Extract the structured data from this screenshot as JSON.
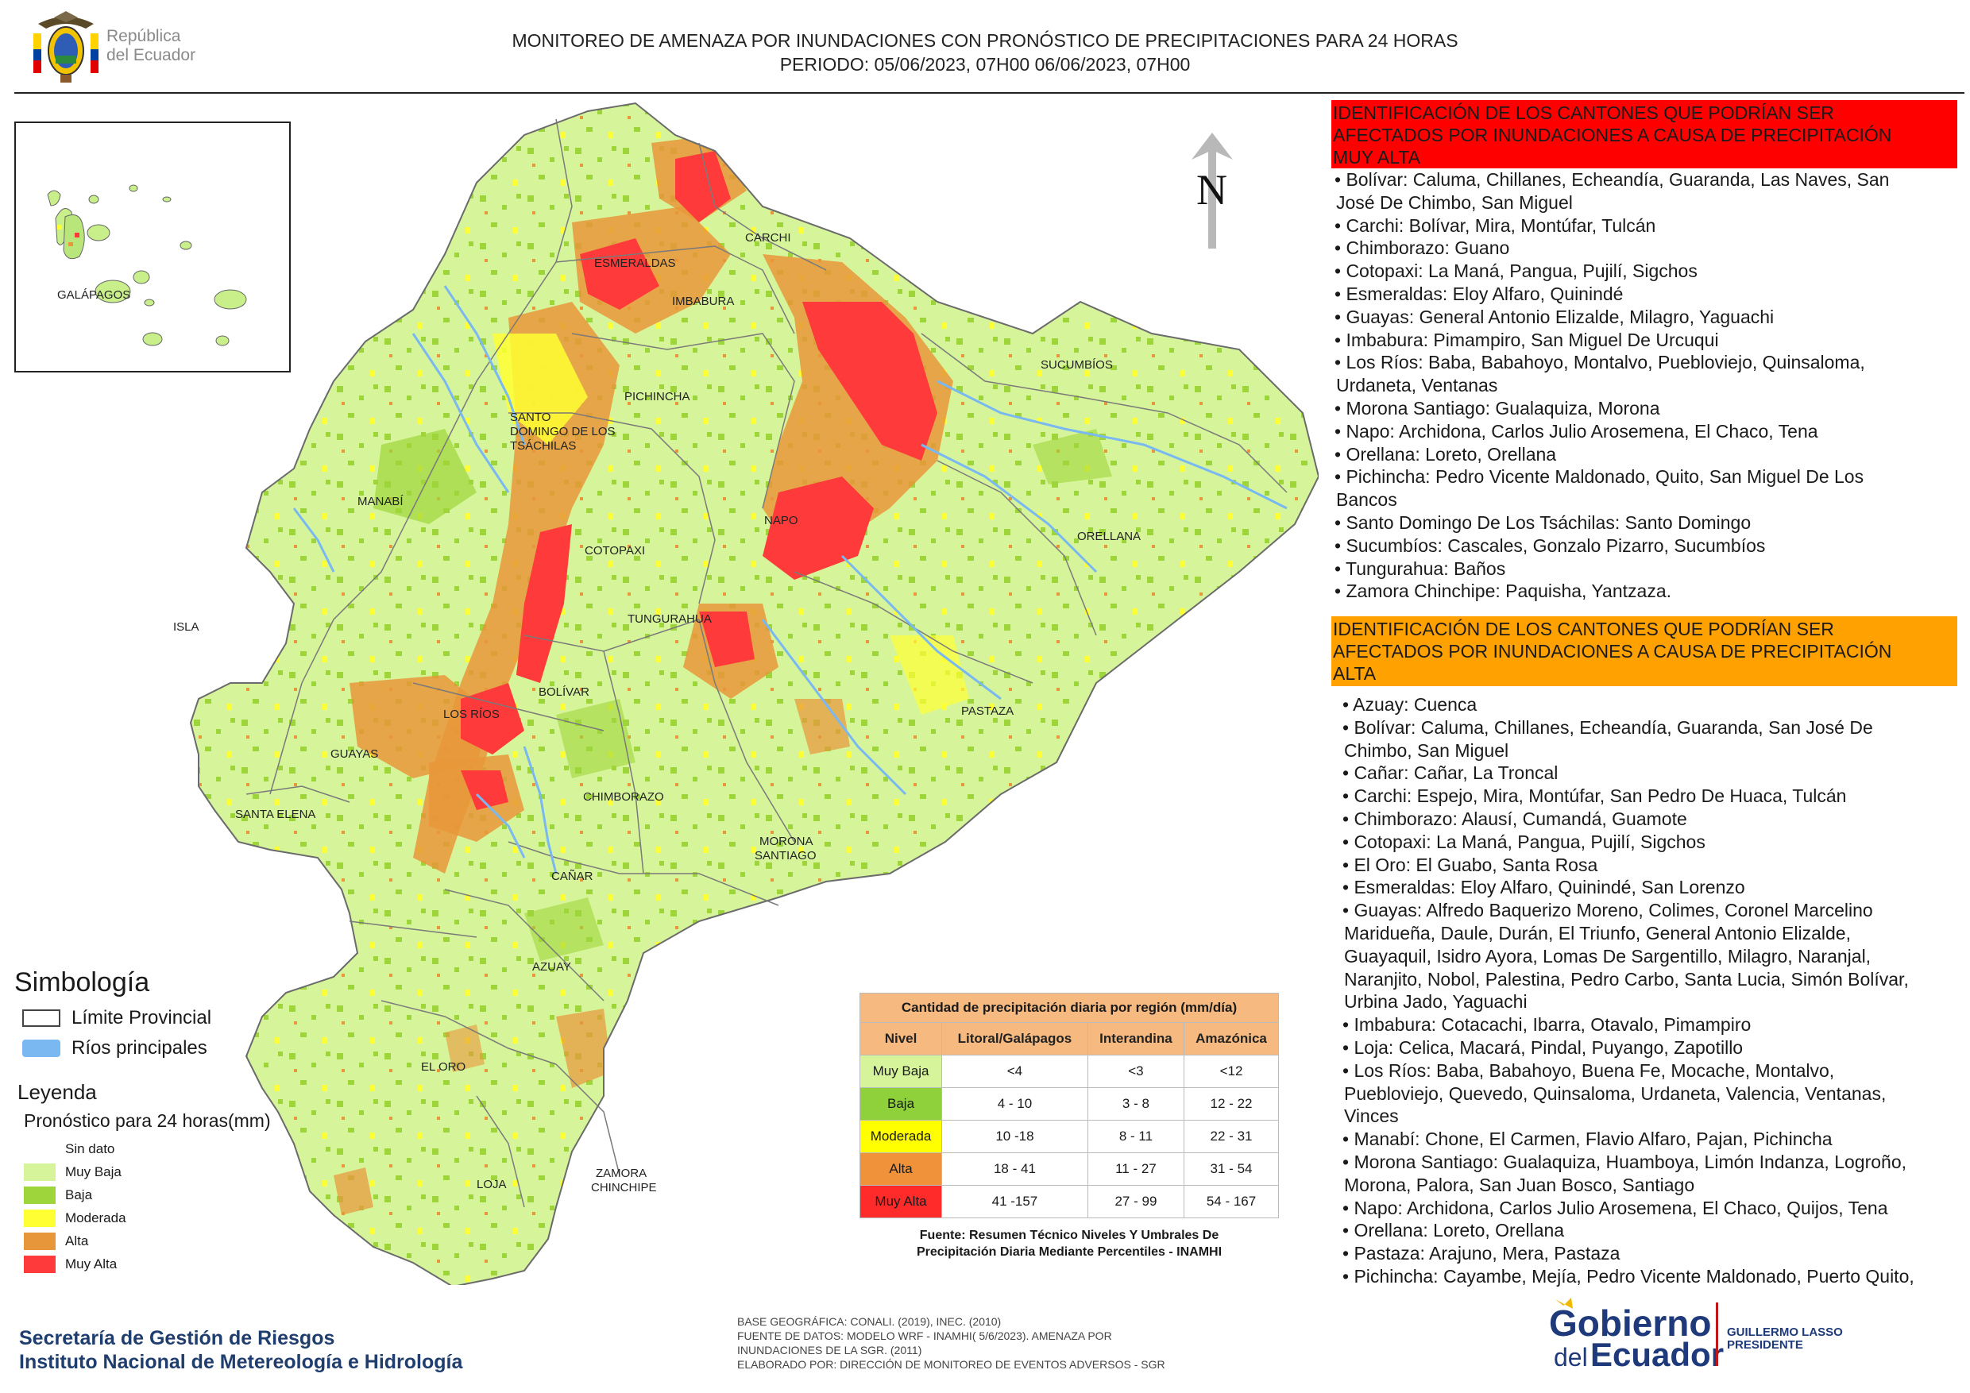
{
  "header": {
    "logo_text_line1": "República",
    "logo_text_line2": "del Ecuador",
    "title_line1": "MONITOREO DE AMENAZA POR INUNDACIONES  CON PRONÓSTICO DE  PRECIPITACIONES PARA 24 HORAS",
    "title_line2": "PERIODO: 05/06/2023, 07H00 06/06/2023, 07H00"
  },
  "map": {
    "north_label": "N",
    "inset_label": "GALÁPAGOS",
    "provinces": [
      "CARCHI",
      "ESMERALDAS",
      "IMBABURA",
      "SUCUMBÍOS",
      "PICHINCHA",
      "SANTO",
      "DOMINGO DE LOS",
      "TSÁCHILAS",
      "MANABÍ",
      "NAPO",
      "ORELLANA",
      "COTOPAXI",
      "ISLA",
      "TUNGURAHUA",
      "BOLÍVAR",
      "LOS RÍOS",
      "PASTAZA",
      "GUAYAS",
      "SANTA ELENA",
      "CHIMBORAZO",
      "MORONA",
      "SANTIAGO",
      "CAÑAR",
      "AZUAY",
      "EL ORO",
      "ZAMORA",
      "CHINCHIPE",
      "LOJA"
    ],
    "colors": {
      "muy_baja": "#d6f59a",
      "baja": "#9ed53a",
      "moderada": "#ffff33",
      "alta": "#e8963a",
      "muy_alta": "#ff3a3a",
      "rivers": "#7ab8f2",
      "border": "#6b6b6b"
    }
  },
  "legend": {
    "simbologia_title": "Simbología",
    "limite": "Límite Provincial",
    "rios": "Ríos principales",
    "leyenda_title": "Leyenda",
    "leyenda_sub": "Pronóstico para 24 horas(mm)",
    "items": [
      {
        "label": "Sin dato",
        "color": "#ffffff"
      },
      {
        "label": "Muy Baja",
        "color": "#d6f59a"
      },
      {
        "label": "Baja",
        "color": "#9ed53a"
      },
      {
        "label": "Moderada",
        "color": "#ffff33"
      },
      {
        "label": "Alta",
        "color": "#e8963a"
      },
      {
        "label": "Muy Alta",
        "color": "#ff3a3a"
      }
    ]
  },
  "precip_table": {
    "title": "Cantidad de precipitación diaria por región (mm/día)",
    "headers": [
      "Nivel",
      "Litoral/Galápagos",
      "Interandina",
      "Amazónica"
    ],
    "rows": [
      {
        "nivel": "Muy Baja",
        "color": "#d6f59a",
        "litoral": "<4",
        "interandina": "<3",
        "amazonica": "<12"
      },
      {
        "nivel": "Baja",
        "color": "#8ed13b",
        "litoral": "4 - 10",
        "interandina": "3 - 8",
        "amazonica": "12 - 22"
      },
      {
        "nivel": "Moderada",
        "color": "#ffff00",
        "litoral": "10 -18",
        "interandina": "8 - 11",
        "amazonica": "22 - 31"
      },
      {
        "nivel": "Alta",
        "color": "#f0923a",
        "litoral": "18 - 41",
        "interandina": "11 - 27",
        "amazonica": "31 - 54"
      },
      {
        "nivel": "Muy Alta",
        "color": "#ff2a2a",
        "litoral": "41 -157",
        "interandina": "27 - 99",
        "amazonica": "54 - 167"
      }
    ],
    "source_line1": "Fuente: Resumen Técnico Niveles Y Umbrales De",
    "source_line2": "Precipitación Diaria Mediante Percentiles - INAMHI"
  },
  "footer": {
    "org_line1": "Secretaría de Gestión de Riesgos",
    "org_line2": "Instituto Nacional de Metereología e Hidrología",
    "credits_line1": "BASE GEOGRÁFICA: CONALI. (2019), INEC. (2010)",
    "credits_line2": "FUENTE DE DATOS: MODELO WRF - INAMHI( 5/6/2023).  AMENAZA POR",
    "credits_line3": "INUNDACIONES DE LA SGR. (2011)",
    "credits_line4": "ELABORADO POR: DIRECCIÓN DE MONITOREO DE EVENTOS ADVERSOS - SGR",
    "gob_line1": "Gobierno",
    "gob_line2": "del",
    "gob_line3": "Ecuador",
    "president_line1": "GUILLERMO LASSO",
    "president_line2": "PRESIDENTE"
  },
  "panel_red": {
    "head_line1": "IDENTIFICACIÓN DE LOS CANTONES QUE PODRÍAN SER",
    "head_line2": "AFECTADOS POR INUNDACIONES  A CAUSA DE PRECIPITACIÓN",
    "head_line3": "MUY ALTA",
    "items": [
      "• Bolívar: Caluma, Chillanes, Echeandía, Guaranda, Las Naves, San",
      "José De Chimbo, San Miguel",
      "• Carchi: Bolívar, Mira, Montúfar, Tulcán",
      "• Chimborazo: Guano",
      "• Cotopaxi: La Maná, Pangua, Pujilí, Sigchos",
      "• Esmeraldas: Eloy Alfaro, Quinindé",
      "• Guayas: General Antonio Elizalde, Milagro, Yaguachi",
      "• Imbabura: Pimampiro, San Miguel De Urcuqui",
      "• Los Ríos: Baba, Babahoyo, Montalvo, Puebloviejo, Quinsaloma,",
      "Urdaneta, Ventanas",
      "• Morona Santiago: Gualaquiza, Morona",
      "• Napo: Archidona, Carlos Julio Arosemena, El Chaco, Tena",
      "• Orellana: Loreto, Orellana",
      "• Pichincha: Pedro Vicente Maldonado, Quito, San Miguel De Los",
      "Bancos",
      "• Santo Domingo De Los Tsáchilas: Santo Domingo",
      "• Sucumbíos: Cascales, Gonzalo Pizarro, Sucumbíos",
      "• Tungurahua: Baños",
      "• Zamora Chinchipe: Paquisha, Yantzaza."
    ]
  },
  "panel_orange": {
    "head_line1": "IDENTIFICACIÓN DE LOS CANTONES QUE  PODRÍAN SER",
    "head_line2": "AFECTADOS POR INUNDACIONES  A CAUSA DE PRECIPITACIÓN",
    "head_line3": "ALTA",
    "items": [
      "• Azuay: Cuenca",
      "• Bolívar: Caluma, Chillanes, Echeandía, Guaranda, San José De",
      "Chimbo, San Miguel",
      "• Cañar: Cañar, La Troncal",
      "• Carchi: Espejo, Mira, Montúfar, San Pedro De Huaca, Tulcán",
      "• Chimborazo: Alausí, Cumandá, Guamote",
      "• Cotopaxi: La Maná, Pangua, Pujilí, Sigchos",
      "• El Oro: El Guabo, Santa Rosa",
      "• Esmeraldas: Eloy Alfaro, Quinindé, San Lorenzo",
      "• Guayas: Alfredo Baquerizo Moreno, Colimes, Coronel Marcelino",
      "Maridueña, Daule, Durán, El Triunfo, General Antonio Elizalde,",
      "Guayaquil, Isidro Ayora, Lomas De Sargentillo, Milagro, Naranjal,",
      "Naranjito, Nobol, Palestina, Pedro Carbo, Santa Lucia, Simón Bolívar,",
      "Urbina Jado, Yaguachi",
      "• Imbabura: Cotacachi, Ibarra, Otavalo, Pimampiro",
      "• Loja: Celica, Macará, Pindal, Puyango, Zapotillo",
      "• Los Ríos: Baba, Babahoyo, Buena Fe, Mocache, Montalvo,",
      "Puebloviejo, Quevedo, Quinsaloma, Urdaneta, Valencia, Ventanas,",
      "Vinces",
      "• Manabí: Chone, El Carmen, Flavio Alfaro, Pajan, Pichincha",
      "• Morona Santiago: Gualaquiza, Huamboya, Limón Indanza, Logroño,",
      "Morona, Palora, San Juan Bosco, Santiago",
      "• Napo: Archidona, Carlos Julio Arosemena, El Chaco, Quijos, Tena",
      "• Orellana: Loreto, Orellana",
      "• Pastaza: Arajuno, Mera, Pastaza",
      "• Pichincha: Cayambe, Mejía, Pedro Vicente Maldonado, Puerto Quito,"
    ]
  }
}
